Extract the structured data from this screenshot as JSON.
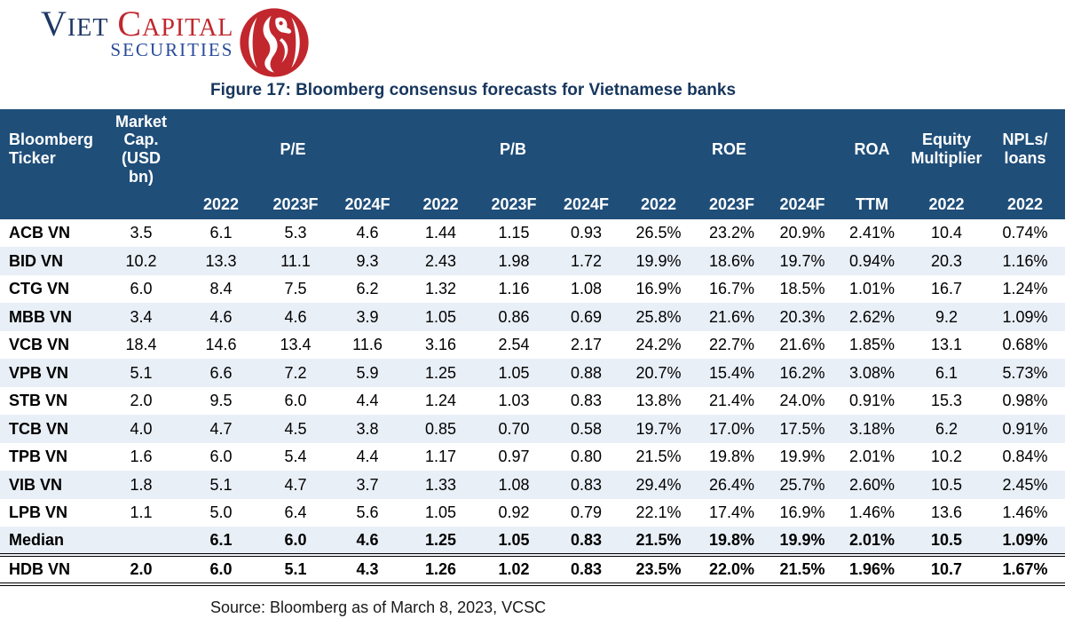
{
  "colors": {
    "brand_red": "#C1272D",
    "brand_navy": "#1F3864",
    "securities_blue": "#2A4B9B",
    "header_bg": "#1F4E79",
    "header_text": "#FFFFFF",
    "stripe_bg": "#E9EFF7",
    "title_color": "#17365D",
    "border_black": "#000000"
  },
  "logo": {
    "word1": "Viet",
    "word2": "Capital",
    "subtitle": "SECURITIES"
  },
  "title": "Figure 17: Bloomberg consensus forecasts for Vietnamese banks",
  "source": "Source: Bloomberg as of March 8, 2023, VCSC",
  "table": {
    "header": {
      "ticker": "Bloomberg Ticker",
      "market_cap": "Market Cap. (USD bn)",
      "groups": [
        {
          "label": "P/E",
          "years": [
            "2022",
            "2023F",
            "2024F"
          ]
        },
        {
          "label": "P/B",
          "years": [
            "2022",
            "2023F",
            "2024F"
          ]
        },
        {
          "label": "ROE",
          "years": [
            "2022",
            "2023F",
            "2024F"
          ]
        },
        {
          "label": "ROA",
          "years": [
            "TTM"
          ]
        },
        {
          "label": "Equity Multiplier",
          "years": [
            "2022"
          ]
        },
        {
          "label": "NPLs/ loans",
          "years": [
            "2022"
          ]
        }
      ]
    },
    "rows": [
      {
        "ticker": "ACB VN",
        "values": [
          "3.5",
          "6.1",
          "5.3",
          "4.6",
          "1.44",
          "1.15",
          "0.93",
          "26.5%",
          "23.2%",
          "20.9%",
          "2.41%",
          "10.4",
          "0.74%"
        ]
      },
      {
        "ticker": "BID VN",
        "values": [
          "10.2",
          "13.3",
          "11.1",
          "9.3",
          "2.43",
          "1.98",
          "1.72",
          "19.9%",
          "18.6%",
          "19.7%",
          "0.94%",
          "20.3",
          "1.16%"
        ]
      },
      {
        "ticker": "CTG VN",
        "values": [
          "6.0",
          "8.4",
          "7.5",
          "6.2",
          "1.32",
          "1.16",
          "1.08",
          "16.9%",
          "16.7%",
          "18.5%",
          "1.01%",
          "16.7",
          "1.24%"
        ]
      },
      {
        "ticker": "MBB VN",
        "values": [
          "3.4",
          "4.6",
          "4.6",
          "3.9",
          "1.05",
          "0.86",
          "0.69",
          "25.8%",
          "21.6%",
          "20.3%",
          "2.62%",
          "9.2",
          "1.09%"
        ]
      },
      {
        "ticker": "VCB VN",
        "values": [
          "18.4",
          "14.6",
          "13.4",
          "11.6",
          "3.16",
          "2.54",
          "2.17",
          "24.2%",
          "22.7%",
          "21.6%",
          "1.85%",
          "13.1",
          "0.68%"
        ]
      },
      {
        "ticker": "VPB VN",
        "values": [
          "5.1",
          "6.6",
          "7.2",
          "5.9",
          "1.25",
          "1.05",
          "0.88",
          "20.7%",
          "15.4%",
          "16.2%",
          "3.08%",
          "6.1",
          "5.73%"
        ]
      },
      {
        "ticker": "STB VN",
        "values": [
          "2.0",
          "9.5",
          "6.0",
          "4.4",
          "1.24",
          "1.03",
          "0.83",
          "13.8%",
          "21.4%",
          "24.0%",
          "0.91%",
          "15.3",
          "0.98%"
        ]
      },
      {
        "ticker": "TCB VN",
        "values": [
          "4.0",
          "4.7",
          "4.5",
          "3.8",
          "0.85",
          "0.70",
          "0.58",
          "19.7%",
          "17.0%",
          "17.5%",
          "3.18%",
          "6.2",
          "0.91%"
        ]
      },
      {
        "ticker": "TPB VN",
        "values": [
          "1.6",
          "6.0",
          "5.4",
          "4.4",
          "1.17",
          "0.97",
          "0.80",
          "21.5%",
          "19.8%",
          "19.9%",
          "2.01%",
          "10.2",
          "0.84%"
        ]
      },
      {
        "ticker": "VIB VN",
        "values": [
          "1.8",
          "5.1",
          "4.7",
          "3.7",
          "1.33",
          "1.08",
          "0.83",
          "29.4%",
          "26.4%",
          "25.7%",
          "2.60%",
          "10.5",
          "2.45%"
        ]
      },
      {
        "ticker": "LPB VN",
        "values": [
          "1.1",
          "5.0",
          "6.4",
          "5.6",
          "1.05",
          "0.92",
          "0.79",
          "22.1%",
          "17.4%",
          "16.9%",
          "1.46%",
          "13.6",
          "1.46%"
        ]
      },
      {
        "ticker": "Median",
        "bold": true,
        "values": [
          "",
          "6.1",
          "6.0",
          "4.6",
          "1.25",
          "1.05",
          "0.83",
          "21.5%",
          "19.8%",
          "19.9%",
          "2.01%",
          "10.5",
          "1.09%"
        ]
      }
    ],
    "highlight_row": {
      "ticker": "HDB VN",
      "bold": true,
      "values": [
        "2.0",
        "6.0",
        "5.1",
        "4.3",
        "1.26",
        "1.02",
        "0.83",
        "23.5%",
        "22.0%",
        "21.5%",
        "1.96%",
        "10.7",
        "1.67%"
      ]
    }
  }
}
